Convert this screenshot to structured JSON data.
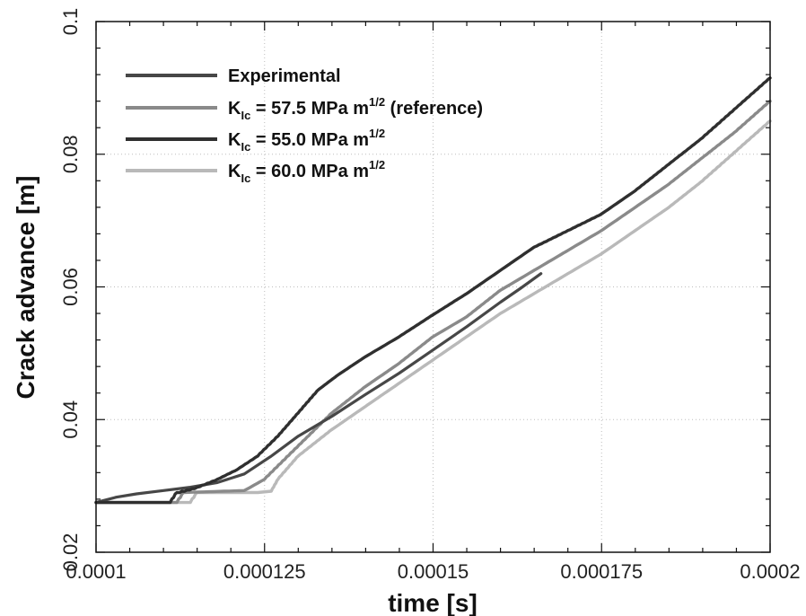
{
  "chart_data": {
    "type": "line",
    "xlabel": "time [s]",
    "ylabel": "Crack advance [m]",
    "xlim": [
      0.0001,
      0.0002
    ],
    "ylim": [
      0.02,
      0.1
    ],
    "x_ticks": [
      0.0001,
      0.000125,
      0.00015,
      0.000175,
      0.0002
    ],
    "x_tick_labels": [
      "0.0001",
      "0.000125",
      "0.00015",
      "0.000175",
      "0.0002"
    ],
    "y_ticks": [
      0.02,
      0.04,
      0.06,
      0.08,
      0.1
    ],
    "y_tick_labels": [
      "0.02",
      "0.04",
      "0.06",
      "0.08",
      "0.1"
    ],
    "grid": true,
    "legend_position": "top-left",
    "series": [
      {
        "name": "Experimental",
        "legend_label": {
          "main": "Experimental",
          "sub": "",
          "tail": "",
          "sup": "",
          "after": ""
        },
        "color": "#474747",
        "x": [
          0.0001,
          0.000103,
          0.000106,
          0.00011,
          0.000114,
          0.000118,
          0.000122,
          0.000126,
          0.00013,
          0.000135,
          0.00014,
          0.000145,
          0.00015,
          0.000155,
          0.00016,
          0.000163,
          0.000166
        ],
        "y": [
          0.0275,
          0.0283,
          0.0288,
          0.0293,
          0.0298,
          0.0305,
          0.0318,
          0.0345,
          0.0375,
          0.0405,
          0.0438,
          0.047,
          0.0505,
          0.054,
          0.0577,
          0.0598,
          0.062
        ]
      },
      {
        "name": "K_Ic = 57.5 MPa m^1/2 (reference)",
        "legend_label": {
          "main": "K",
          "sub": "Ic",
          "tail": " = 57.5 MPa m",
          "sup": "1/2",
          "after": " (reference)"
        },
        "color": "#8a8a8a",
        "x": [
          0.0001,
          0.000112,
          0.000113,
          0.000116,
          0.000119,
          0.000122,
          0.000125,
          0.000128,
          0.000131,
          0.000135,
          0.00014,
          0.000145,
          0.00015,
          0.000155,
          0.00016,
          0.000165,
          0.00017,
          0.000175,
          0.00018,
          0.000185,
          0.00019,
          0.000195,
          0.0002
        ],
        "y": [
          0.0275,
          0.0275,
          0.029,
          0.0291,
          0.0292,
          0.0293,
          0.031,
          0.034,
          0.037,
          0.041,
          0.045,
          0.0485,
          0.0525,
          0.0555,
          0.0595,
          0.0625,
          0.0655,
          0.0685,
          0.072,
          0.0755,
          0.0795,
          0.0835,
          0.088
        ]
      },
      {
        "name": "K_Ic = 55.0 MPa m^1/2",
        "legend_label": {
          "main": "K",
          "sub": "Ic",
          "tail": " = 55.0 MPa m",
          "sup": "1/2",
          "after": ""
        },
        "color": "#2f2f2f",
        "x": [
          0.0001,
          0.000111,
          0.000112,
          0.000115,
          0.000118,
          0.000121,
          0.000124,
          0.000127,
          0.00013,
          0.000133,
          0.000136,
          0.00014,
          0.000145,
          0.00015,
          0.000155,
          0.00016,
          0.000165,
          0.00017,
          0.000175,
          0.00018,
          0.000185,
          0.00019,
          0.000195,
          0.0002
        ],
        "y": [
          0.0275,
          0.0275,
          0.029,
          0.0298,
          0.031,
          0.0325,
          0.0345,
          0.0375,
          0.041,
          0.0445,
          0.0468,
          0.0495,
          0.0525,
          0.0558,
          0.059,
          0.0625,
          0.066,
          0.0685,
          0.071,
          0.0745,
          0.0785,
          0.0825,
          0.087,
          0.0915
        ]
      },
      {
        "name": "K_Ic = 60.0 MPa m^1/2",
        "legend_label": {
          "main": "K",
          "sub": "Ic",
          "tail": " = 60.0 MPa m",
          "sup": "1/2",
          "after": ""
        },
        "color": "#b9b9b9",
        "x": [
          0.0001,
          0.000114,
          0.000115,
          0.000118,
          0.000121,
          0.000124,
          0.000126,
          0.000127,
          0.00013,
          0.000135,
          0.00014,
          0.000145,
          0.00015,
          0.000155,
          0.00016,
          0.000165,
          0.00017,
          0.000175,
          0.00018,
          0.000185,
          0.00019,
          0.000195,
          0.0002
        ],
        "y": [
          0.0275,
          0.0275,
          0.029,
          0.029,
          0.029,
          0.029,
          0.0292,
          0.031,
          0.0345,
          0.0385,
          0.042,
          0.0455,
          0.049,
          0.0525,
          0.056,
          0.059,
          0.062,
          0.065,
          0.0685,
          0.072,
          0.076,
          0.0805,
          0.085
        ]
      }
    ]
  }
}
